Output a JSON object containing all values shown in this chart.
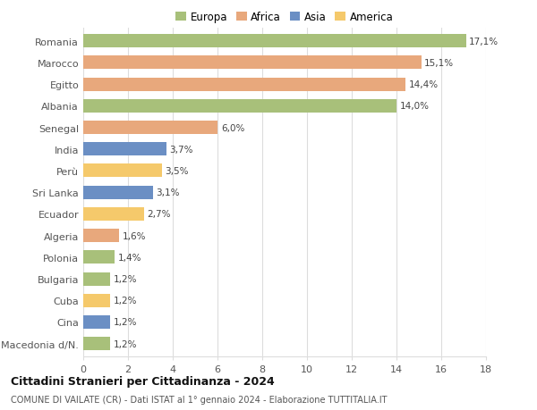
{
  "countries": [
    "Romania",
    "Marocco",
    "Egitto",
    "Albania",
    "Senegal",
    "India",
    "Perù",
    "Sri Lanka",
    "Ecuador",
    "Algeria",
    "Polonia",
    "Bulgaria",
    "Cuba",
    "Cina",
    "Macedonia d/N."
  ],
  "values": [
    17.1,
    15.1,
    14.4,
    14.0,
    6.0,
    3.7,
    3.5,
    3.1,
    2.7,
    1.6,
    1.4,
    1.2,
    1.2,
    1.2,
    1.2
  ],
  "labels": [
    "17,1%",
    "15,1%",
    "14,4%",
    "14,0%",
    "6,0%",
    "3,7%",
    "3,5%",
    "3,1%",
    "2,7%",
    "1,6%",
    "1,4%",
    "1,2%",
    "1,2%",
    "1,2%",
    "1,2%"
  ],
  "continents": [
    "Europa",
    "Africa",
    "Africa",
    "Europa",
    "Africa",
    "Asia",
    "America",
    "Asia",
    "America",
    "Africa",
    "Europa",
    "Europa",
    "America",
    "Asia",
    "Europa"
  ],
  "colors": {
    "Europa": "#a8c07a",
    "Africa": "#e8a87c",
    "Asia": "#6b8fc4",
    "America": "#f5c96b"
  },
  "legend_order": [
    "Europa",
    "Africa",
    "Asia",
    "America"
  ],
  "title": "Cittadini Stranieri per Cittadinanza - 2024",
  "subtitle": "COMUNE DI VAILATE (CR) - Dati ISTAT al 1° gennaio 2024 - Elaborazione TUTTITALIA.IT",
  "xlim": [
    0,
    18
  ],
  "xticks": [
    0,
    2,
    4,
    6,
    8,
    10,
    12,
    14,
    16,
    18
  ],
  "background_color": "#ffffff",
  "grid_color": "#dddddd",
  "bar_height": 0.62
}
